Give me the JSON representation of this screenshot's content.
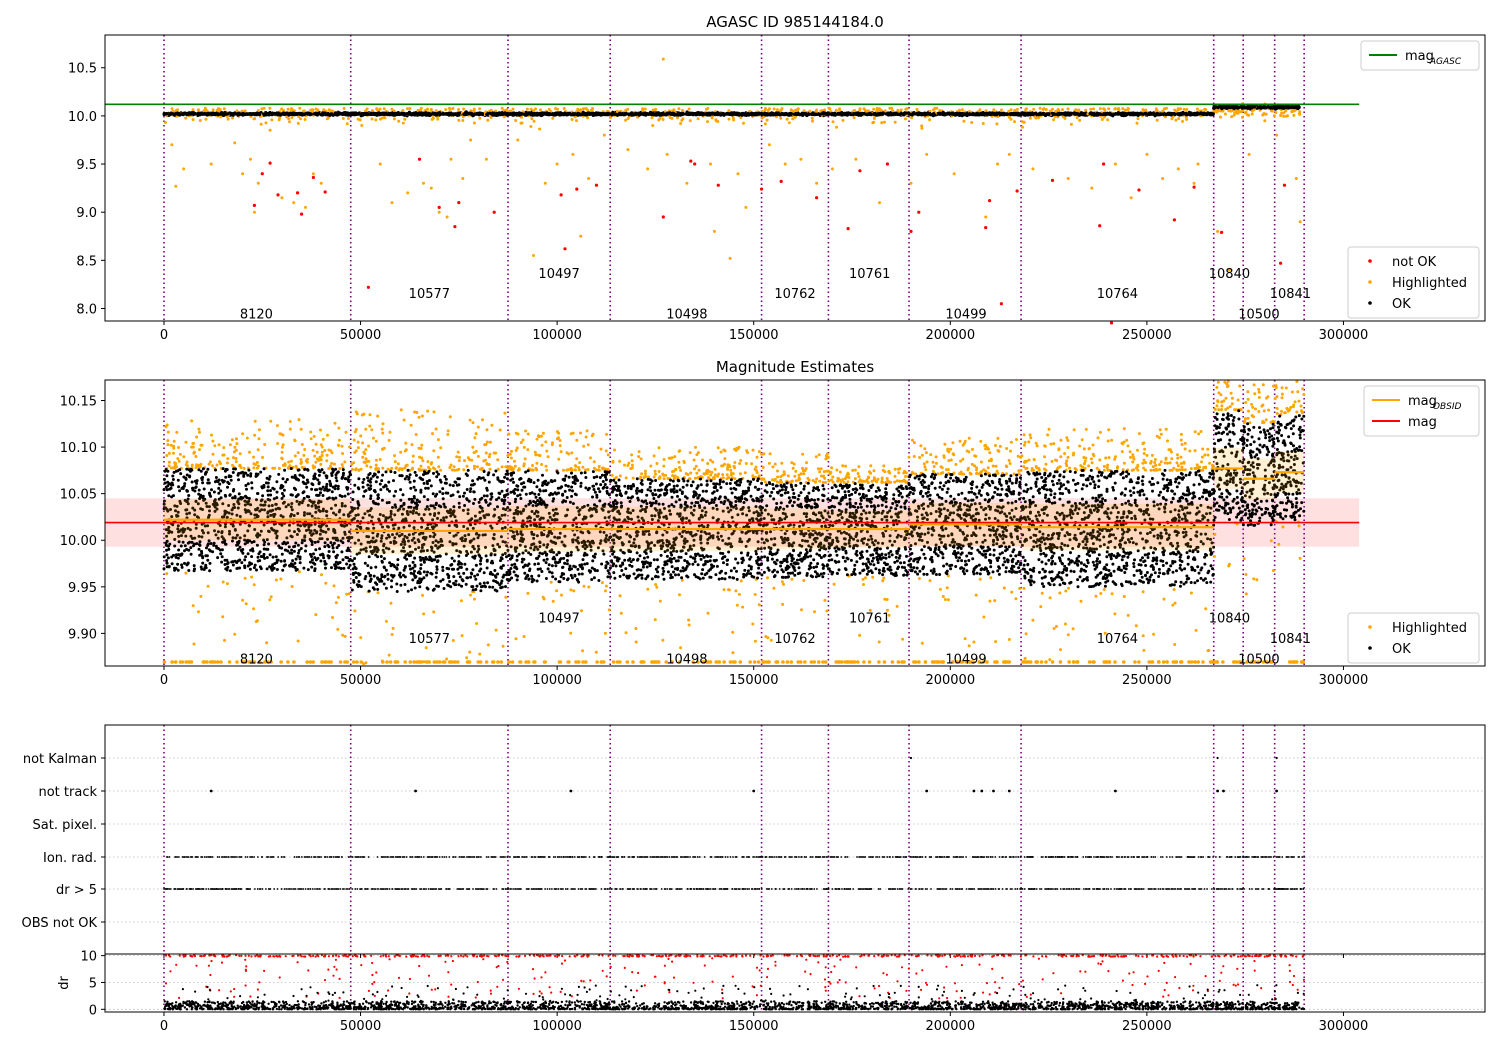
{
  "chart_data": [
    {
      "type": "scatter",
      "title": "AGASC ID 985144184.0",
      "xlim": [
        -15000,
        336000
      ],
      "ylim": [
        7.87,
        10.84
      ],
      "x_ticks": [
        0,
        50000,
        100000,
        150000,
        200000,
        250000,
        300000
      ],
      "x_tick_labels": [
        "0",
        "50000",
        "100000",
        "150000",
        "200000",
        "250000",
        "300000"
      ],
      "y_ticks": [
        8.0,
        8.5,
        9.0,
        9.5,
        10.0,
        10.5
      ],
      "y_tick_labels": [
        "8.0",
        "8.5",
        "9.0",
        "9.5",
        "10.0",
        "10.5"
      ],
      "grid": false,
      "legend_top": {
        "position": "top-right",
        "entries": [
          {
            "label": "mag",
            "sub": "AGASC",
            "color": "#008000",
            "kind": "line"
          }
        ]
      },
      "legend_bottom": {
        "position": "bottom-right",
        "entries": [
          {
            "label": "not OK",
            "color": "#ff0000",
            "kind": "marker"
          },
          {
            "label": "Highlighted",
            "color": "#ffa500",
            "kind": "marker"
          },
          {
            "label": "OK",
            "color": "#000000",
            "kind": "marker"
          }
        ]
      },
      "mag_agasc": 10.12,
      "mag_agasc_range": [
        -15000,
        304000
      ],
      "series": [
        {
          "name": "OK",
          "color": "#000000",
          "segments": [
            [
              0,
              267000,
              10.02,
              0.025
            ],
            [
              267000,
              289000,
              10.09,
              0.03
            ]
          ]
        },
        {
          "name": "Highlighted",
          "color": "#ffa500",
          "points": [
            [
              2000,
              9.7
            ],
            [
              3000,
              9.27
            ],
            [
              5000,
              9.45
            ],
            [
              12000,
              9.5
            ],
            [
              18000,
              9.72
            ],
            [
              20000,
              9.4
            ],
            [
              22000,
              9.55
            ],
            [
              23000,
              9.0
            ],
            [
              24000,
              9.3
            ],
            [
              27000,
              9.85
            ],
            [
              30000,
              9.15
            ],
            [
              33000,
              9.1
            ],
            [
              36000,
              9.05
            ],
            [
              38000,
              9.4
            ],
            [
              40000,
              9.3
            ],
            [
              55000,
              9.5
            ],
            [
              58000,
              9.1
            ],
            [
              62000,
              9.2
            ],
            [
              66000,
              9.3
            ],
            [
              68000,
              9.25
            ],
            [
              70000,
              9.0
            ],
            [
              72000,
              8.95
            ],
            [
              73000,
              9.55
            ],
            [
              76000,
              9.35
            ],
            [
              78000,
              9.75
            ],
            [
              82000,
              9.55
            ],
            [
              90000,
              9.75
            ],
            [
              94000,
              8.55
            ],
            [
              97000,
              9.3
            ],
            [
              100000,
              9.5
            ],
            [
              104000,
              9.6
            ],
            [
              106000,
              8.75
            ],
            [
              108000,
              9.35
            ],
            [
              112000,
              9.8
            ],
            [
              118000,
              9.65
            ],
            [
              123000,
              9.45
            ],
            [
              127000,
              10.59
            ],
            [
              128000,
              9.6
            ],
            [
              133000,
              9.3
            ],
            [
              139000,
              9.5
            ],
            [
              140000,
              8.8
            ],
            [
              144000,
              8.52
            ],
            [
              146000,
              9.4
            ],
            [
              148000,
              9.05
            ],
            [
              154000,
              9.7
            ],
            [
              158000,
              9.5
            ],
            [
              162000,
              9.55
            ],
            [
              166000,
              9.3
            ],
            [
              170000,
              9.45
            ],
            [
              176000,
              9.55
            ],
            [
              182000,
              9.1
            ],
            [
              190000,
              9.3
            ],
            [
              194000,
              9.6
            ],
            [
              201000,
              9.4
            ],
            [
              209000,
              8.95
            ],
            [
              212000,
              9.5
            ],
            [
              215000,
              9.6
            ],
            [
              221000,
              9.45
            ],
            [
              230000,
              9.35
            ],
            [
              236000,
              9.25
            ],
            [
              242000,
              9.5
            ],
            [
              246000,
              9.15
            ],
            [
              250000,
              9.6
            ],
            [
              254000,
              9.35
            ],
            [
              258000,
              9.45
            ],
            [
              262000,
              9.3
            ],
            [
              263000,
              9.5
            ],
            [
              268000,
              8.8
            ],
            [
              271000,
              8.4
            ],
            [
              276000,
              9.6
            ],
            [
              280000,
              9.95
            ],
            [
              283000,
              9.8
            ],
            [
              288000,
              9.35
            ],
            [
              289000,
              8.9
            ]
          ]
        },
        {
          "name": "not OK",
          "color": "#ff0000",
          "points": [
            [
              23000,
              9.07
            ],
            [
              25000,
              9.4
            ],
            [
              27000,
              9.51
            ],
            [
              29000,
              9.18
            ],
            [
              34000,
              9.2
            ],
            [
              35000,
              8.98
            ],
            [
              38000,
              9.36
            ],
            [
              41000,
              9.21
            ],
            [
              52000,
              8.22
            ],
            [
              65000,
              9.55
            ],
            [
              70000,
              9.05
            ],
            [
              74000,
              8.85
            ],
            [
              75000,
              9.1
            ],
            [
              84000,
              9.0
            ],
            [
              101000,
              9.18
            ],
            [
              102000,
              8.62
            ],
            [
              105000,
              9.24
            ],
            [
              110000,
              9.28
            ],
            [
              127000,
              8.95
            ],
            [
              134000,
              9.53
            ],
            [
              135000,
              9.5
            ],
            [
              141000,
              9.28
            ],
            [
              152000,
              9.24
            ],
            [
              157000,
              9.32
            ],
            [
              166000,
              9.15
            ],
            [
              174000,
              8.83
            ],
            [
              177000,
              9.43
            ],
            [
              184000,
              9.5
            ],
            [
              190000,
              8.8
            ],
            [
              192000,
              9.0
            ],
            [
              209000,
              8.84
            ],
            [
              210000,
              9.12
            ],
            [
              213000,
              8.05
            ],
            [
              217000,
              9.22
            ],
            [
              226000,
              9.33
            ],
            [
              238000,
              8.86
            ],
            [
              239000,
              9.5
            ],
            [
              241000,
              7.85
            ],
            [
              248000,
              9.23
            ],
            [
              257000,
              8.92
            ],
            [
              262000,
              9.26
            ],
            [
              269000,
              8.79
            ],
            [
              284000,
              8.47
            ],
            [
              285000,
              9.28
            ]
          ]
        }
      ],
      "obsid_boundaries": [
        0,
        47500,
        87500,
        113500,
        152000,
        169000,
        189500,
        218000,
        267000,
        274500,
        282500,
        290000
      ],
      "obsid_labels": [
        {
          "text": "8120",
          "x": 23500,
          "y": 7.95
        },
        {
          "text": "10577",
          "x": 67500,
          "y": 8.16
        },
        {
          "text": "10497",
          "x": 100500,
          "y": 8.37
        },
        {
          "text": "10498",
          "x": 133000,
          "y": 7.95
        },
        {
          "text": "10762",
          "x": 160500,
          "y": 8.16
        },
        {
          "text": "10761",
          "x": 179500,
          "y": 8.37
        },
        {
          "text": "10499",
          "x": 204000,
          "y": 7.95
        },
        {
          "text": "10764",
          "x": 242500,
          "y": 8.16
        },
        {
          "text": "10840",
          "x": 271000,
          "y": 8.37
        },
        {
          "text": "10500",
          "x": 278500,
          "y": 7.95
        },
        {
          "text": "10841",
          "x": 286500,
          "y": 8.16
        }
      ]
    },
    {
      "type": "scatter",
      "title": "Magnitude Estimates",
      "xlim": [
        -15000,
        336000
      ],
      "ylim": [
        9.865,
        10.172
      ],
      "x_ticks": [
        0,
        50000,
        100000,
        150000,
        200000,
        250000,
        300000
      ],
      "x_tick_labels": [
        "0",
        "50000",
        "100000",
        "150000",
        "200000",
        "250000",
        "300000"
      ],
      "y_ticks": [
        9.9,
        9.95,
        10.0,
        10.05,
        10.1,
        10.15
      ],
      "y_tick_labels": [
        "9.90",
        "9.95",
        "10.00",
        "10.05",
        "10.10",
        "10.15"
      ],
      "grid": false,
      "legend_top": {
        "position": "top-right",
        "entries": [
          {
            "label": "mag",
            "sub": "OBSID",
            "color": "#ffa500",
            "kind": "line"
          },
          {
            "label": "mag",
            "sub": "",
            "color": "#ff0000",
            "kind": "line"
          }
        ]
      },
      "legend_bottom": {
        "position": "bottom-right",
        "entries": [
          {
            "label": "Highlighted",
            "color": "#ffa500",
            "kind": "marker"
          },
          {
            "label": "OK",
            "color": "#000000",
            "kind": "marker"
          }
        ]
      },
      "mag": 10.019,
      "mag_band": [
        9.993,
        10.045
      ],
      "mag_range": [
        -15000,
        304000
      ],
      "obsid_segments": [
        {
          "x0": 0,
          "x1": 47500,
          "mag": 10.022,
          "ok_lo": 9.967,
          "ok_hi": 10.077,
          "err": 0.022,
          "hl_hi": 10.13
        },
        {
          "x0": 47500,
          "x1": 87500,
          "mag": 10.01,
          "ok_lo": 9.945,
          "ok_hi": 10.075,
          "err": 0.025,
          "hl_hi": 10.14
        },
        {
          "x0": 87500,
          "x1": 113500,
          "mag": 10.012,
          "ok_lo": 9.955,
          "ok_hi": 10.075,
          "err": 0.025,
          "hl_hi": 10.12
        },
        {
          "x0": 113500,
          "x1": 152000,
          "mag": 10.012,
          "ok_lo": 9.958,
          "ok_hi": 10.066,
          "err": 0.024,
          "hl_hi": 10.1
        },
        {
          "x0": 152000,
          "x1": 169000,
          "mag": 10.012,
          "ok_lo": 9.96,
          "ok_hi": 10.062,
          "err": 0.022,
          "hl_hi": 10.1
        },
        {
          "x0": 169000,
          "x1": 189500,
          "mag": 10.012,
          "ok_lo": 9.962,
          "ok_hi": 10.062,
          "err": 0.02,
          "hl_hi": 10.08
        },
        {
          "x0": 189500,
          "x1": 218000,
          "mag": 10.017,
          "ok_lo": 9.963,
          "ok_hi": 10.071,
          "err": 0.023,
          "hl_hi": 10.11
        },
        {
          "x0": 218000,
          "x1": 267000,
          "mag": 10.014,
          "ok_lo": 9.95,
          "ok_hi": 10.075,
          "err": 0.025,
          "hl_hi": 10.12
        },
        {
          "x0": 267000,
          "x1": 274500,
          "mag": 10.077,
          "ok_lo": 10.02,
          "ok_hi": 10.14,
          "err": 0.022,
          "hl_hi": 10.172
        },
        {
          "x0": 274500,
          "x1": 282500,
          "mag": 10.066,
          "ok_lo": 10.015,
          "ok_hi": 10.126,
          "err": 0.022,
          "hl_hi": 10.172
        },
        {
          "x0": 282500,
          "x1": 290000,
          "mag": 10.073,
          "ok_lo": 10.022,
          "ok_hi": 10.135,
          "err": 0.022,
          "hl_hi": 10.172
        }
      ],
      "obsid_boundaries": [
        0,
        47500,
        87500,
        113500,
        152000,
        169000,
        189500,
        218000,
        267000,
        274500,
        282500,
        290000
      ],
      "obsid_labels": [
        {
          "text": "8120",
          "x": 23500,
          "y": 9.873
        },
        {
          "text": "10577",
          "x": 67500,
          "y": 9.895
        },
        {
          "text": "10497",
          "x": 100500,
          "y": 9.917
        },
        {
          "text": "10498",
          "x": 133000,
          "y": 9.873
        },
        {
          "text": "10762",
          "x": 160500,
          "y": 9.895
        },
        {
          "text": "10761",
          "x": 179500,
          "y": 9.917
        },
        {
          "text": "10499",
          "x": 204000,
          "y": 9.873
        },
        {
          "text": "10764",
          "x": 242500,
          "y": 9.895
        },
        {
          "text": "10840",
          "x": 271000,
          "y": 9.917
        },
        {
          "text": "10500",
          "x": 278500,
          "y": 9.873
        },
        {
          "text": "10841",
          "x": 286500,
          "y": 9.895
        }
      ]
    },
    {
      "type": "scatter",
      "title": "",
      "xlim": [
        -15000,
        336000
      ],
      "categories": [
        "not Kalman",
        "not track",
        "Sat. pixel.",
        "Ion. rad.",
        "dr > 5",
        "OBS not OK"
      ],
      "grid": "horizontal dotted",
      "series": [
        {
          "name": "not track",
          "points_x": [
            12000,
            64000,
            103500,
            150000,
            194000,
            206000,
            208000,
            211000,
            215000,
            242000,
            268000,
            269500,
            283000
          ]
        },
        {
          "name": "not Kalman",
          "points_x": [
            190000,
            268000,
            283000
          ]
        },
        {
          "name": "Ion. rad.",
          "density_ranges": [
            [
              0,
              290000
            ]
          ]
        },
        {
          "name": "dr > 5",
          "density_ranges": [
            [
              0,
              290000
            ]
          ]
        }
      ],
      "obsid_boundaries": [
        0,
        47500,
        87500,
        113500,
        152000,
        169000,
        189500,
        218000,
        267000,
        274500,
        282500,
        290000
      ]
    },
    {
      "type": "scatter",
      "title": "",
      "ylabel": "dr",
      "xlim": [
        -15000,
        336000
      ],
      "ylim": [
        -0.5,
        10.3
      ],
      "x_ticks": [
        0,
        50000,
        100000,
        150000,
        200000,
        250000,
        300000
      ],
      "x_tick_labels": [
        "0",
        "50000",
        "100000",
        "150000",
        "200000",
        "250000",
        "300000"
      ],
      "y_ticks": [
        0,
        5,
        10
      ],
      "y_tick_labels": [
        "0",
        "5",
        "10"
      ],
      "grid": "horizontal dotted",
      "series": [
        {
          "name": "OK",
          "color": "#000000",
          "range_x": [
            0,
            290000
          ],
          "y_range": [
            0,
            1.5
          ]
        },
        {
          "name": "not OK",
          "color": "#ff0000",
          "range_x": [
            0,
            290000
          ],
          "y_range": [
            2,
            10
          ]
        }
      ],
      "obsid_boundaries": [
        0,
        47500,
        87500,
        113500,
        152000,
        169000,
        189500,
        218000,
        267000,
        274500,
        282500,
        290000
      ]
    }
  ]
}
